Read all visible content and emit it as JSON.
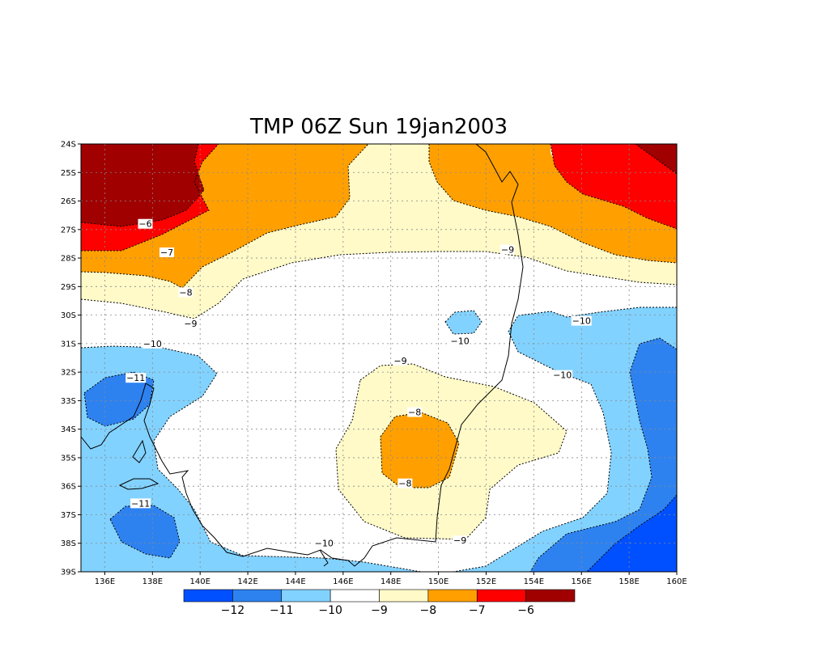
{
  "title": "TMP 06Z Sun 19jan2003",
  "map": {
    "lon_range": [
      135,
      160
    ],
    "lat_range": [
      -39,
      -24
    ],
    "lon_ticks": [
      {
        "value": 136,
        "label": "136E"
      },
      {
        "value": 138,
        "label": "138E"
      },
      {
        "value": 140,
        "label": "140E"
      },
      {
        "value": 142,
        "label": "142E"
      },
      {
        "value": 144,
        "label": "144E"
      },
      {
        "value": 146,
        "label": "146E"
      },
      {
        "value": 148,
        "label": "148E"
      },
      {
        "value": 150,
        "label": "150E"
      },
      {
        "value": 152,
        "label": "152E"
      },
      {
        "value": 154,
        "label": "154E"
      },
      {
        "value": 156,
        "label": "156E"
      },
      {
        "value": 158,
        "label": "158E"
      },
      {
        "value": 160,
        "label": "160E"
      }
    ],
    "lat_ticks": [
      {
        "value": -24,
        "label": "24S"
      },
      {
        "value": -25,
        "label": "25S"
      },
      {
        "value": -26,
        "label": "26S"
      },
      {
        "value": -27,
        "label": "27S"
      },
      {
        "value": -28,
        "label": "28S"
      },
      {
        "value": -29,
        "label": "29S"
      },
      {
        "value": -30,
        "label": "30S"
      },
      {
        "value": -31,
        "label": "31S"
      },
      {
        "value": -32,
        "label": "32S"
      },
      {
        "value": -33,
        "label": "33S"
      },
      {
        "value": -34,
        "label": "34S"
      },
      {
        "value": -35,
        "label": "35S"
      },
      {
        "value": -36,
        "label": "36S"
      },
      {
        "value": -37,
        "label": "37S"
      },
      {
        "value": -38,
        "label": "38S"
      },
      {
        "value": -39,
        "label": "39S"
      }
    ],
    "grid": true
  },
  "colorbar": {
    "colors": [
      "#0050ff",
      "#2e82f0",
      "#82d2ff",
      "#ffffff",
      "#fffac8",
      "#ffa000",
      "#ff0000",
      "#a00000"
    ],
    "labels": [
      "−12",
      "−11",
      "−10",
      "−9",
      "−8",
      "−7",
      "−6"
    ]
  },
  "contour_labels": [
    {
      "text": "−6",
      "lon": 137.7,
      "lat": -26.8
    },
    {
      "text": "−7",
      "lon": 138.6,
      "lat": -27.8
    },
    {
      "text": "−8",
      "lon": 139.4,
      "lat": -29.2
    },
    {
      "text": "−9",
      "lon": 139.6,
      "lat": -30.3
    },
    {
      "text": "−10",
      "lon": 138.0,
      "lat": -31.0
    },
    {
      "text": "−11",
      "lon": 137.3,
      "lat": -32.2
    },
    {
      "text": "−11",
      "lon": 137.5,
      "lat": -36.6
    },
    {
      "text": "−10",
      "lon": 145.2,
      "lat": -38.0
    },
    {
      "text": "−9",
      "lon": 148.4,
      "lat": -31.6
    },
    {
      "text": "−8",
      "lon": 149.0,
      "lat": -33.4
    },
    {
      "text": "−8",
      "lon": 148.6,
      "lat": -35.9
    },
    {
      "text": "−9",
      "lon": 150.9,
      "lat": -37.9
    },
    {
      "text": "−10",
      "lon": 150.9,
      "lat": -30.9
    },
    {
      "text": "−9",
      "lon": 152.9,
      "lat": -27.7
    },
    {
      "text": "−10",
      "lon": 156.0,
      "lat": -30.2
    },
    {
      "text": "−10",
      "lon": 155.2,
      "lat": -32.1
    }
  ]
}
